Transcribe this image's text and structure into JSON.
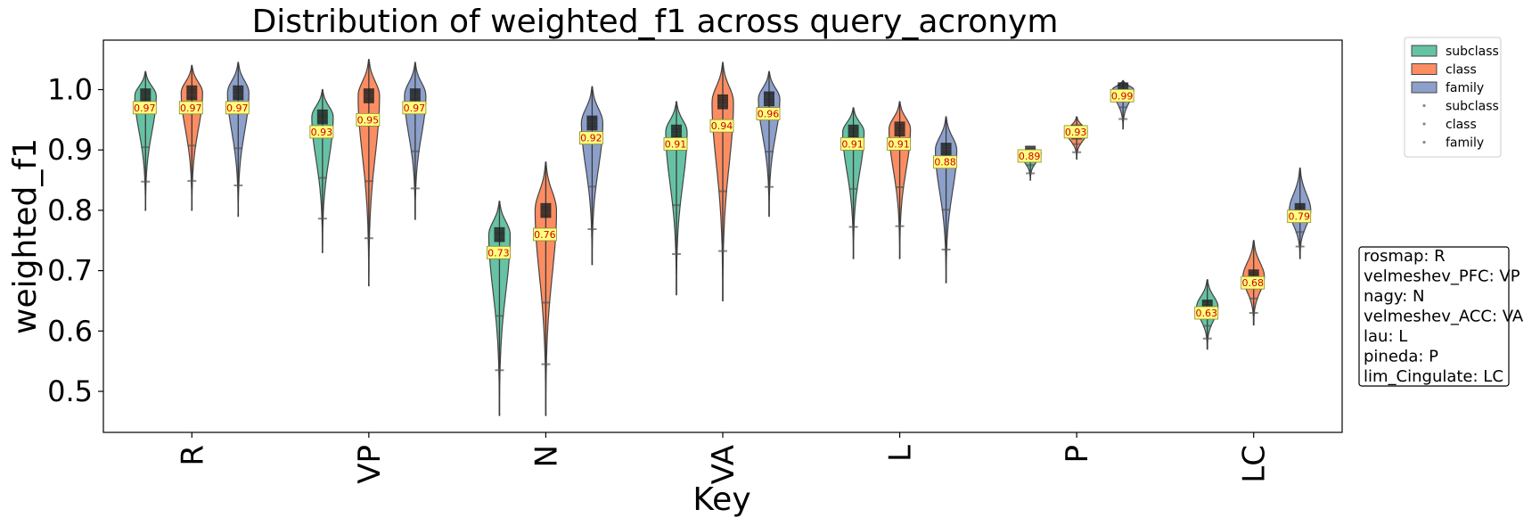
{
  "chart_data": {
    "type": "violin",
    "title": "Distribution of weighted_f1 across query_acronym",
    "xlabel": "Key",
    "ylabel": "weighted_f1",
    "ylim": [
      0.432,
      1.082
    ],
    "yticks": [
      0.5,
      0.6,
      0.7,
      0.8,
      0.9,
      1.0
    ],
    "ytick_labels": [
      "0.5",
      "0.6",
      "0.7",
      "0.8",
      "0.9",
      "1.0"
    ],
    "categories": [
      "R",
      "VP",
      "N",
      "VA",
      "L",
      "P",
      "LC"
    ],
    "colors": {
      "subclass": "#66c2a5",
      "class": "#fc8d62",
      "family": "#8da0cb"
    },
    "legend": {
      "placement": "outside-right-top",
      "entries": [
        {
          "label": "subclass",
          "kind": "patch",
          "color": "#66c2a5"
        },
        {
          "label": "class",
          "kind": "patch",
          "color": "#fc8d62"
        },
        {
          "label": "family",
          "kind": "patch",
          "color": "#8da0cb"
        },
        {
          "label": "subclass",
          "kind": "point",
          "color": "#888888"
        },
        {
          "label": "class",
          "kind": "point",
          "color": "#888888"
        },
        {
          "label": "family",
          "kind": "point",
          "color": "#888888"
        }
      ]
    },
    "series": [
      {
        "name": "subclass",
        "medians": [
          0.97,
          0.93,
          0.73,
          0.91,
          0.91,
          0.89,
          0.63
        ],
        "median_labels": [
          "0.97",
          "0.93",
          "0.73",
          "0.91",
          "0.91",
          "0.89",
          "0.63"
        ],
        "min": [
          0.8,
          0.73,
          0.46,
          0.66,
          0.72,
          0.85,
          0.57
        ],
        "max": [
          1.03,
          1.0,
          0.815,
          0.98,
          0.97,
          0.9,
          0.685
        ],
        "peak": [
          0.99,
          0.955,
          0.76,
          0.93,
          0.93,
          0.895,
          0.64
        ]
      },
      {
        "name": "class",
        "medians": [
          0.97,
          0.95,
          0.76,
          0.94,
          0.91,
          0.93,
          0.68
        ],
        "median_labels": [
          "0.97",
          "0.95",
          "0.76",
          "0.94",
          "0.91",
          "0.93",
          "0.68"
        ],
        "min": [
          0.8,
          0.675,
          0.46,
          0.65,
          0.72,
          0.885,
          0.61
        ],
        "max": [
          1.04,
          1.05,
          0.88,
          1.045,
          0.98,
          0.955,
          0.75
        ],
        "peak": [
          0.995,
          0.99,
          0.8,
          0.98,
          0.935,
          0.93,
          0.69
        ]
      },
      {
        "name": "family",
        "medians": [
          0.97,
          0.97,
          0.92,
          0.96,
          0.88,
          0.99,
          0.79
        ],
        "median_labels": [
          "0.97",
          "0.97",
          "0.92",
          "0.96",
          "0.88",
          "0.99",
          "0.79"
        ],
        "min": [
          0.79,
          0.785,
          0.71,
          0.79,
          0.68,
          0.935,
          0.72
        ],
        "max": [
          1.045,
          1.045,
          1.005,
          1.03,
          0.955,
          1.015,
          0.87
        ],
        "peak": [
          0.995,
          0.99,
          0.945,
          0.985,
          0.9,
          1.0,
          0.8
        ]
      }
    ],
    "key_map": {
      "lines": [
        "rosmap: R",
        "velmeshev_PFC: VP",
        "nagy: N",
        "velmeshev_ACC: VA",
        "lau: L",
        "pineda: P",
        "lim_Cingulate: LC"
      ]
    }
  }
}
